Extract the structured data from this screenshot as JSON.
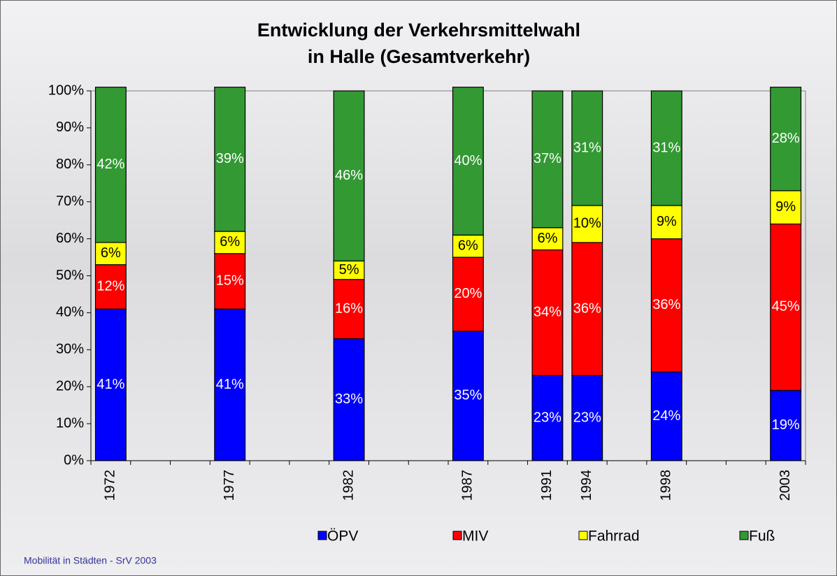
{
  "chart_data": {
    "type": "stacked_bar",
    "title": [
      "Entwicklung der Verkehrsmittelwahl",
      "in Halle (Gesamtverkehr)"
    ],
    "source": "Mobilität in Städten - SrV 2003",
    "categories": [
      "1972",
      null,
      null,
      "1977",
      null,
      null,
      "1982",
      null,
      null,
      "1987",
      null,
      "1991",
      "1994",
      null,
      "1998",
      null,
      null,
      "2003"
    ],
    "series": [
      {
        "name": "ÖPV",
        "color": "#0000ff",
        "label_color": "#ffffff",
        "values": [
          41,
          null,
          null,
          41,
          null,
          null,
          33,
          null,
          null,
          35,
          null,
          23,
          23,
          null,
          24,
          null,
          null,
          19
        ],
        "value_labels": [
          "41%",
          null,
          null,
          "41%",
          null,
          null,
          "33%",
          null,
          null,
          "35%",
          null,
          "23%",
          "23%",
          null,
          "24%",
          null,
          null,
          "19%"
        ]
      },
      {
        "name": "MIV",
        "color": "#ff0000",
        "label_color": "#ffffff",
        "values": [
          12,
          null,
          null,
          15,
          null,
          null,
          16,
          null,
          null,
          20,
          null,
          34,
          36,
          null,
          36,
          null,
          null,
          45
        ],
        "value_labels": [
          "12%",
          null,
          null,
          "15%",
          null,
          null,
          "16%",
          null,
          null,
          "20%",
          null,
          "34%",
          "36%",
          null,
          "36%",
          null,
          null,
          "45%"
        ]
      },
      {
        "name": "Fahrrad",
        "color": "#ffff00",
        "label_color": "#000000",
        "values": [
          6,
          null,
          null,
          6,
          null,
          null,
          5,
          null,
          null,
          6,
          null,
          6,
          10,
          null,
          9,
          null,
          null,
          9
        ],
        "value_labels": [
          "6%",
          null,
          null,
          "6%",
          null,
          null,
          "5%",
          null,
          null,
          "6%",
          null,
          "6%",
          "10%",
          null,
          "9%",
          null,
          null,
          "9%"
        ]
      },
      {
        "name": "Fuß",
        "color": "#339933",
        "label_color": "#ffffff",
        "values": [
          42,
          null,
          null,
          39,
          null,
          null,
          46,
          null,
          null,
          40,
          null,
          37,
          31,
          null,
          31,
          null,
          null,
          28
        ],
        "value_labels": [
          "42%",
          null,
          null,
          "39%",
          null,
          null,
          "46%",
          null,
          null,
          "40%",
          null,
          "37%",
          "31%",
          null,
          "31%",
          null,
          null,
          "28%"
        ]
      }
    ],
    "ylim": [
      0,
      100
    ],
    "yticks": [
      {
        "value": 0,
        "label": "0%"
      },
      {
        "value": 10,
        "label": "10%"
      },
      {
        "value": 20,
        "label": "20%"
      },
      {
        "value": 30,
        "label": "30%"
      },
      {
        "value": 40,
        "label": "40%"
      },
      {
        "value": 50,
        "label": "50%"
      },
      {
        "value": 60,
        "label": "60%"
      },
      {
        "value": 70,
        "label": "70%"
      },
      {
        "value": 80,
        "label": "80%"
      },
      {
        "value": 90,
        "label": "90%"
      },
      {
        "value": 100,
        "label": "100%"
      }
    ],
    "legend": "bottom"
  }
}
